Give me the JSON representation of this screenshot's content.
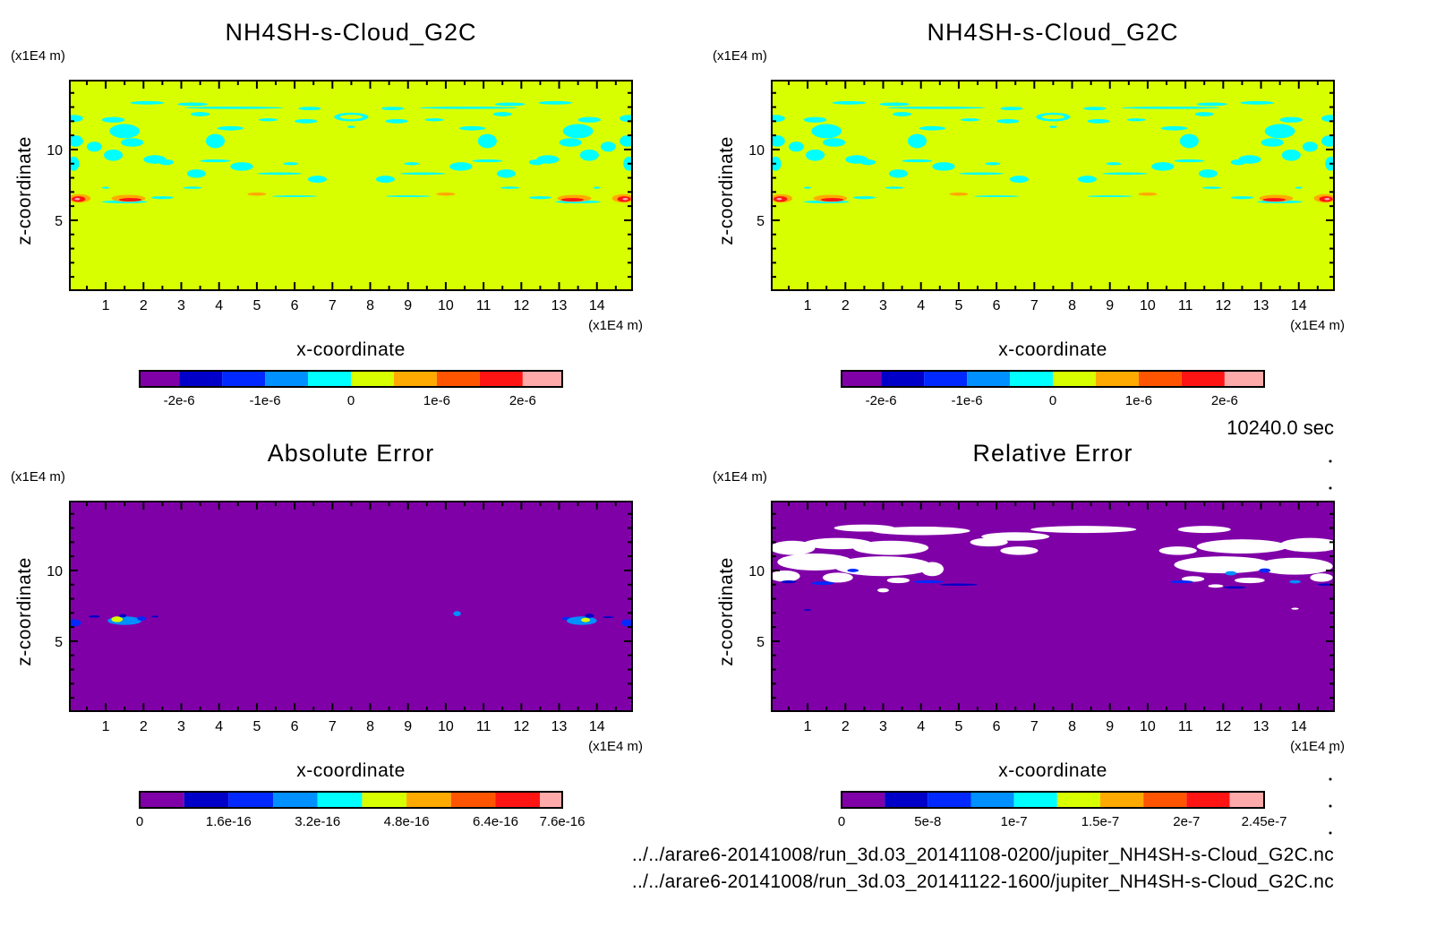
{
  "time_label": "10240.0 sec",
  "files": [
    "../../arare6-20141008/run_3d.03_20141108-0200/jupiter_NH4SH-s-Cloud_G2C.nc",
    "../../arare6-20141008/run_3d.03_20141122-1600/jupiter_NH4SH-s-Cloud_G2C.nc"
  ],
  "chart_data": [
    {
      "type": "heatmap",
      "title": "NH4SH-s-Cloud_G2C",
      "xlabel": "x-coordinate",
      "ylabel": "z-coordinate",
      "xunit": "(x1E4 m)",
      "yunit": "(x1E4 m)",
      "xlim": [
        0.05,
        14.93
      ],
      "ylim": [
        0.06,
        14.87
      ],
      "xticks": [
        1,
        2,
        3,
        4,
        5,
        6,
        7,
        8,
        9,
        10,
        11,
        12,
        13,
        14
      ],
      "yticks": [
        5,
        10
      ],
      "background_level": 5,
      "mirror": true,
      "colorbar": {
        "bounds": [
          -2.46e-06,
          -2e-06,
          -1.5e-06,
          -1e-06,
          -5e-07,
          0,
          5e-07,
          1e-06,
          1.5e-06,
          2e-06,
          2.46e-06
        ],
        "colors": [
          "#8000a8",
          "#0000c8",
          "#0028ff",
          "#0090ff",
          "#00ffff",
          "#d8ff00",
          "#ffaa00",
          "#ff5500",
          "#ff1414",
          "#ffaaaa"
        ],
        "ticks": [
          {
            "v": -2e-06,
            "label": "-2e-6"
          },
          {
            "v": -1e-06,
            "label": "-1e-6"
          },
          {
            "v": 0,
            "label": "0"
          },
          {
            "v": 1e-06,
            "label": "1e-6"
          },
          {
            "v": 2e-06,
            "label": "2e-6"
          }
        ]
      },
      "blobs": "cloud"
    },
    {
      "type": "heatmap",
      "title": "NH4SH-s-Cloud_G2C",
      "xlabel": "x-coordinate",
      "ylabel": "z-coordinate",
      "xunit": "(x1E4 m)",
      "yunit": "(x1E4 m)",
      "xlim": [
        0.05,
        14.93
      ],
      "ylim": [
        0.06,
        14.87
      ],
      "xticks": [
        1,
        2,
        3,
        4,
        5,
        6,
        7,
        8,
        9,
        10,
        11,
        12,
        13,
        14
      ],
      "yticks": [
        5,
        10
      ],
      "background_level": 5,
      "mirror": true,
      "colorbar": {
        "bounds": [
          -2.46e-06,
          -2e-06,
          -1.5e-06,
          -1e-06,
          -5e-07,
          0,
          5e-07,
          1e-06,
          1.5e-06,
          2e-06,
          2.46e-06
        ],
        "colors": [
          "#8000a8",
          "#0000c8",
          "#0028ff",
          "#0090ff",
          "#00ffff",
          "#d8ff00",
          "#ffaa00",
          "#ff5500",
          "#ff1414",
          "#ffaaaa"
        ],
        "ticks": [
          {
            "v": -2e-06,
            "label": "-2e-6"
          },
          {
            "v": -1e-06,
            "label": "-1e-6"
          },
          {
            "v": 0,
            "label": "0"
          },
          {
            "v": 1e-06,
            "label": "1e-6"
          },
          {
            "v": 2e-06,
            "label": "2e-6"
          }
        ]
      },
      "blobs": "cloud"
    },
    {
      "type": "heatmap",
      "title": "Absolute Error",
      "xlabel": "x-coordinate",
      "ylabel": "z-coordinate",
      "xunit": "(x1E4 m)",
      "yunit": "(x1E4 m)",
      "xlim": [
        0.05,
        14.93
      ],
      "ylim": [
        0.06,
        14.87
      ],
      "xticks": [
        1,
        2,
        3,
        4,
        5,
        6,
        7,
        8,
        9,
        10,
        11,
        12,
        13,
        14
      ],
      "yticks": [
        5,
        10
      ],
      "background_level": 0,
      "mirror": false,
      "colorbar": {
        "bounds": [
          0,
          8e-17,
          1.6e-16,
          2.4e-16,
          3.2e-16,
          4e-16,
          4.8e-16,
          5.6e-16,
          6.4e-16,
          7.2e-16,
          7.6e-16
        ],
        "colors": [
          "#8000a8",
          "#0000c8",
          "#0028ff",
          "#0090ff",
          "#00ffff",
          "#d8ff00",
          "#ffaa00",
          "#ff5500",
          "#ff1414",
          "#ffaaaa"
        ],
        "ticks": [
          {
            "v": 0,
            "label": "0"
          },
          {
            "v": 1.6e-16,
            "label": "1.6e-16"
          },
          {
            "v": 3.2e-16,
            "label": "3.2e-16"
          },
          {
            "v": 4.8e-16,
            "label": "4.8e-16"
          },
          {
            "v": 6.4e-16,
            "label": "6.4e-16"
          },
          {
            "v": 7.6e-16,
            "label": "7.6e-16"
          }
        ]
      },
      "blobs": [
        {
          "x": 0.15,
          "z": 6.3,
          "rx": 0.2,
          "rz": 0.25,
          "level": 2
        },
        {
          "x": 0.7,
          "z": 6.75,
          "rx": 0.15,
          "rz": 0.08,
          "level": 1
        },
        {
          "x": 1.5,
          "z": 6.45,
          "rx": 0.45,
          "rz": 0.3,
          "level": 3
        },
        {
          "x": 1.3,
          "z": 6.55,
          "rx": 0.15,
          "rz": 0.2,
          "level": 5
        },
        {
          "x": 1.45,
          "z": 6.8,
          "rx": 0.1,
          "rz": 0.12,
          "level": 1
        },
        {
          "x": 1.95,
          "z": 6.6,
          "rx": 0.12,
          "rz": 0.15,
          "level": 2
        },
        {
          "x": 2.3,
          "z": 6.75,
          "rx": 0.1,
          "rz": 0.06,
          "level": 1
        },
        {
          "x": 10.3,
          "z": 6.95,
          "rx": 0.1,
          "rz": 0.18,
          "level": 3
        },
        {
          "x": 13.2,
          "z": 6.6,
          "rx": 0.12,
          "rz": 0.12,
          "level": 2
        },
        {
          "x": 13.6,
          "z": 6.45,
          "rx": 0.4,
          "rz": 0.3,
          "level": 3
        },
        {
          "x": 13.8,
          "z": 6.8,
          "rx": 0.12,
          "rz": 0.15,
          "level": 1
        },
        {
          "x": 13.7,
          "z": 6.5,
          "rx": 0.12,
          "rz": 0.15,
          "level": 5
        },
        {
          "x": 14.3,
          "z": 6.7,
          "rx": 0.15,
          "rz": 0.06,
          "level": 1
        },
        {
          "x": 14.8,
          "z": 6.3,
          "rx": 0.15,
          "rz": 0.25,
          "level": 2
        }
      ]
    },
    {
      "type": "heatmap",
      "title": "Relative Error",
      "xlabel": "x-coordinate",
      "ylabel": "z-coordinate",
      "xunit": "(x1E4 m)",
      "yunit": "(x1E4 m)",
      "xlim": [
        0.05,
        14.93
      ],
      "ylim": [
        0.06,
        14.87
      ],
      "xticks": [
        1,
        2,
        3,
        4,
        5,
        6,
        7,
        8,
        9,
        10,
        11,
        12,
        13,
        14
      ],
      "yticks": [
        5,
        10
      ],
      "background_level": 0,
      "mirror": false,
      "colorbar": {
        "bounds": [
          0,
          2.5e-08,
          5e-08,
          7.5e-08,
          1e-07,
          1.25e-07,
          1.5e-07,
          1.75e-07,
          2e-07,
          2.25e-07,
          2.45e-07
        ],
        "colors": [
          "#8000a8",
          "#0000c8",
          "#0028ff",
          "#0090ff",
          "#00ffff",
          "#d8ff00",
          "#ffaa00",
          "#ff5500",
          "#ff1414",
          "#ffaaaa"
        ],
        "ticks": [
          {
            "v": 0,
            "label": "0"
          },
          {
            "v": 5e-08,
            "label": "5e-8"
          },
          {
            "v": 1e-07,
            "label": "1e-7"
          },
          {
            "v": 1.5e-07,
            "label": "1.5e-7"
          },
          {
            "v": 2e-07,
            "label": "2e-7"
          },
          {
            "v": 2.45e-07,
            "label": "2.45e-7"
          }
        ]
      },
      "over_color": "#ffffff",
      "blobs": [
        {
          "x": 2.5,
          "z": 13.0,
          "rx": 0.8,
          "rz": 0.25,
          "level": 10
        },
        {
          "x": 4.0,
          "z": 12.8,
          "rx": 1.3,
          "rz": 0.3,
          "level": 10
        },
        {
          "x": 8.3,
          "z": 12.9,
          "rx": 1.4,
          "rz": 0.25,
          "level": 10
        },
        {
          "x": 11.5,
          "z": 12.9,
          "rx": 0.7,
          "rz": 0.25,
          "level": 10
        },
        {
          "x": 6.5,
          "z": 12.4,
          "rx": 0.9,
          "rz": 0.3,
          "level": 10
        },
        {
          "x": 0.6,
          "z": 11.6,
          "rx": 0.6,
          "rz": 0.5,
          "level": 10
        },
        {
          "x": 1.8,
          "z": 11.9,
          "rx": 0.9,
          "rz": 0.4,
          "level": 10
        },
        {
          "x": 3.2,
          "z": 11.6,
          "rx": 1.0,
          "rz": 0.5,
          "level": 10
        },
        {
          "x": 1.2,
          "z": 10.6,
          "rx": 1.0,
          "rz": 0.6,
          "level": 10
        },
        {
          "x": 3.0,
          "z": 10.3,
          "rx": 1.3,
          "rz": 0.7,
          "level": 10
        },
        {
          "x": 0.4,
          "z": 9.6,
          "rx": 0.4,
          "rz": 0.4,
          "level": 10
        },
        {
          "x": 1.8,
          "z": 9.5,
          "rx": 0.4,
          "rz": 0.35,
          "level": 10
        },
        {
          "x": 4.3,
          "z": 10.1,
          "rx": 0.3,
          "rz": 0.5,
          "level": 10
        },
        {
          "x": 3.4,
          "z": 9.3,
          "rx": 0.3,
          "rz": 0.2,
          "level": 10
        },
        {
          "x": 6.6,
          "z": 11.4,
          "rx": 0.5,
          "rz": 0.3,
          "level": 10
        },
        {
          "x": 5.8,
          "z": 12.0,
          "rx": 0.5,
          "rz": 0.3,
          "level": 10
        },
        {
          "x": 10.8,
          "z": 11.4,
          "rx": 0.5,
          "rz": 0.3,
          "level": 10
        },
        {
          "x": 12.5,
          "z": 11.7,
          "rx": 1.2,
          "rz": 0.5,
          "level": 10
        },
        {
          "x": 14.3,
          "z": 11.8,
          "rx": 0.8,
          "rz": 0.5,
          "level": 10
        },
        {
          "x": 12.0,
          "z": 10.4,
          "rx": 1.3,
          "rz": 0.6,
          "level": 10
        },
        {
          "x": 13.9,
          "z": 10.3,
          "rx": 1.0,
          "rz": 0.6,
          "level": 10
        },
        {
          "x": 11.2,
          "z": 9.4,
          "rx": 0.3,
          "rz": 0.2,
          "level": 10
        },
        {
          "x": 12.7,
          "z": 9.3,
          "rx": 0.4,
          "rz": 0.2,
          "level": 10
        },
        {
          "x": 14.6,
          "z": 9.5,
          "rx": 0.3,
          "rz": 0.3,
          "level": 10
        },
        {
          "x": 3.0,
          "z": 8.6,
          "rx": 0.15,
          "rz": 0.15,
          "level": 10
        },
        {
          "x": 11.8,
          "z": 8.9,
          "rx": 0.2,
          "rz": 0.12,
          "level": 10
        },
        {
          "x": 12.2,
          "z": 9.8,
          "rx": 0.15,
          "rz": 0.15,
          "level": 3
        },
        {
          "x": 1.4,
          "z": 9.1,
          "rx": 0.3,
          "rz": 0.12,
          "level": 2
        },
        {
          "x": 0.5,
          "z": 9.2,
          "rx": 0.2,
          "rz": 0.1,
          "level": 1
        },
        {
          "x": 4.2,
          "z": 9.2,
          "rx": 0.4,
          "rz": 0.1,
          "level": 2
        },
        {
          "x": 5.0,
          "z": 9.0,
          "rx": 0.5,
          "rz": 0.08,
          "level": 1
        },
        {
          "x": 2.2,
          "z": 10.0,
          "rx": 0.15,
          "rz": 0.12,
          "level": 2
        },
        {
          "x": 10.9,
          "z": 9.2,
          "rx": 0.3,
          "rz": 0.1,
          "level": 2
        },
        {
          "x": 13.1,
          "z": 10.0,
          "rx": 0.15,
          "rz": 0.15,
          "level": 2
        },
        {
          "x": 13.9,
          "z": 9.2,
          "rx": 0.15,
          "rz": 0.12,
          "level": 3
        },
        {
          "x": 12.3,
          "z": 8.8,
          "rx": 0.3,
          "rz": 0.08,
          "level": 1
        },
        {
          "x": 14.7,
          "z": 9.0,
          "rx": 0.2,
          "rz": 0.08,
          "level": 1
        },
        {
          "x": 1.0,
          "z": 7.2,
          "rx": 0.1,
          "rz": 0.06,
          "level": 1
        },
        {
          "x": 13.9,
          "z": 7.3,
          "rx": 0.1,
          "rz": 0.07,
          "level": 10
        }
      ]
    }
  ],
  "cloud_blobs_left_half": [
    {
      "x": 0.15,
      "z": 12.2,
      "rx": 0.25,
      "rz": 0.25,
      "level": 4
    },
    {
      "x": 0.2,
      "z": 10.6,
      "rx": 0.2,
      "rz": 0.4,
      "level": 4
    },
    {
      "x": 0.15,
      "z": 9.0,
      "rx": 0.15,
      "rz": 0.5,
      "level": 4
    },
    {
      "x": 0.7,
      "z": 10.2,
      "rx": 0.2,
      "rz": 0.35,
      "level": 4
    },
    {
      "x": 1.2,
      "z": 12.1,
      "rx": 0.3,
      "rz": 0.2,
      "level": 4
    },
    {
      "x": 1.5,
      "z": 11.3,
      "rx": 0.4,
      "rz": 0.5,
      "level": 4
    },
    {
      "x": 1.7,
      "z": 10.5,
      "rx": 0.3,
      "rz": 0.3,
      "level": 4
    },
    {
      "x": 1.2,
      "z": 9.6,
      "rx": 0.25,
      "rz": 0.4,
      "level": 4
    },
    {
      "x": 2.3,
      "z": 9.3,
      "rx": 0.3,
      "rz": 0.3,
      "level": 4
    },
    {
      "x": 2.6,
      "z": 9.1,
      "rx": 0.2,
      "rz": 0.2,
      "level": 4
    },
    {
      "x": 1.0,
      "z": 7.3,
      "rx": 0.1,
      "rz": 0.07,
      "level": 4
    },
    {
      "x": 2.1,
      "z": 13.3,
      "rx": 0.45,
      "rz": 0.12,
      "level": 4
    },
    {
      "x": 3.3,
      "z": 13.2,
      "rx": 0.4,
      "rz": 0.12,
      "level": 4
    },
    {
      "x": 4.4,
      "z": 12.95,
      "rx": 1.3,
      "rz": 0.08,
      "level": 4
    },
    {
      "x": 3.5,
      "z": 12.5,
      "rx": 0.25,
      "rz": 0.15,
      "level": 4
    },
    {
      "x": 4.3,
      "z": 11.5,
      "rx": 0.35,
      "rz": 0.15,
      "level": 4
    },
    {
      "x": 3.9,
      "z": 10.6,
      "rx": 0.25,
      "rz": 0.5,
      "level": 4
    },
    {
      "x": 3.9,
      "z": 9.2,
      "rx": 0.4,
      "rz": 0.1,
      "level": 4
    },
    {
      "x": 4.6,
      "z": 8.8,
      "rx": 0.3,
      "rz": 0.3,
      "level": 4
    },
    {
      "x": 3.4,
      "z": 8.3,
      "rx": 0.25,
      "rz": 0.3,
      "level": 4
    },
    {
      "x": 5.6,
      "z": 8.3,
      "rx": 0.6,
      "rz": 0.08,
      "level": 4
    },
    {
      "x": 6.6,
      "z": 7.9,
      "rx": 0.25,
      "rz": 0.25,
      "level": 4
    },
    {
      "x": 5.9,
      "z": 9.0,
      "rx": 0.2,
      "rz": 0.1,
      "level": 4
    },
    {
      "x": 5.3,
      "z": 12.1,
      "rx": 0.25,
      "rz": 0.1,
      "level": 4
    },
    {
      "x": 6.3,
      "z": 12.0,
      "rx": 0.3,
      "rz": 0.15,
      "level": 4
    },
    {
      "x": 6.4,
      "z": 12.9,
      "rx": 0.3,
      "rz": 0.12,
      "level": 4
    },
    {
      "x": 7.5,
      "z": 12.3,
      "rx": 0.45,
      "rz": 0.3,
      "level": 4
    },
    {
      "x": 7.5,
      "z": 12.3,
      "rx": 0.3,
      "rz": 0.15,
      "level": 5
    },
    {
      "x": 7.5,
      "z": 11.6,
      "rx": 0.1,
      "rz": 0.08,
      "level": 4
    },
    {
      "x": 6.0,
      "z": 6.7,
      "rx": 0.6,
      "rz": 0.06,
      "level": 4
    },
    {
      "x": 2.5,
      "z": 6.6,
      "rx": 0.3,
      "rz": 0.1,
      "level": 4
    },
    {
      "x": 3.3,
      "z": 7.3,
      "rx": 0.25,
      "rz": 0.08,
      "level": 4
    },
    {
      "x": 1.5,
      "z": 6.3,
      "rx": 0.6,
      "rz": 0.1,
      "level": 4
    },
    {
      "x": 0.3,
      "z": 6.55,
      "rx": 0.3,
      "rz": 0.3,
      "level": 6
    },
    {
      "x": 0.28,
      "z": 6.5,
      "rx": 0.18,
      "rz": 0.2,
      "level": 8
    },
    {
      "x": 0.25,
      "z": 6.5,
      "rx": 0.07,
      "rz": 0.08,
      "level": 9
    },
    {
      "x": 1.6,
      "z": 6.55,
      "rx": 0.45,
      "rz": 0.25,
      "level": 6
    },
    {
      "x": 1.65,
      "z": 6.45,
      "rx": 0.3,
      "rz": 0.12,
      "level": 8
    },
    {
      "x": 5.0,
      "z": 6.85,
      "rx": 0.25,
      "rz": 0.12,
      "level": 6
    }
  ]
}
